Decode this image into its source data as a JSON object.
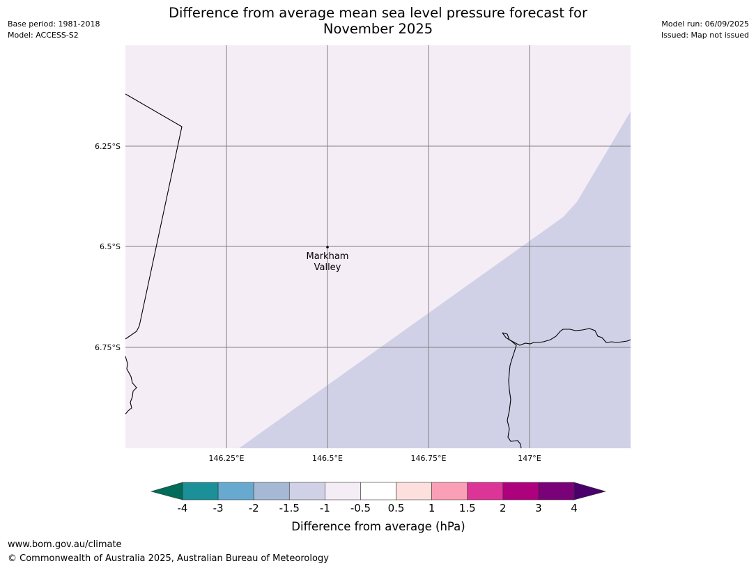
{
  "header": {
    "base_period": "Base period: 1981-2018",
    "model": "Model: ACCESS-S2",
    "model_run": "Model run: 06/09/2025",
    "issued": "Issued: Map not issued",
    "title_line1": "Difference from average mean sea level pressure forecast for",
    "title_line2": "November 2025"
  },
  "map": {
    "lat_ticks": [
      "6.25°S",
      "6.5°S",
      "6.75°S"
    ],
    "lon_ticks": [
      "146.25°E",
      "146.5°E",
      "146.75°E",
      "147°E"
    ],
    "place": {
      "name_line1": "Markham",
      "name_line2": "Valley",
      "lat": -6.5,
      "lon": 146.5
    },
    "fill_colors": {
      "background": "#f4edf5",
      "region": "#d0d1e6",
      "coastline": "#000000",
      "grid": "#808080"
    }
  },
  "colorbar": {
    "title": "Difference from average (hPa)",
    "labels": [
      "-4",
      "-3",
      "-2",
      "-1.5",
      "-1",
      "-0.5",
      "0.5",
      "1",
      "1.5",
      "2",
      "3",
      "4"
    ],
    "colors": [
      "#1b9098",
      "#67a9cf",
      "#a6b9d4",
      "#d0d1e6",
      "#f4edf5",
      "#ffffff",
      "#fde0dd",
      "#fa9fb5",
      "#dd3497",
      "#ae017e",
      "#7a0177"
    ],
    "under_color": "#016c59",
    "over_color": "#49006a"
  },
  "footer": {
    "url": "www.bom.gov.au/climate",
    "copyright": "© Commonwealth of Australia 2025, Australian Bureau of Meteorology"
  }
}
